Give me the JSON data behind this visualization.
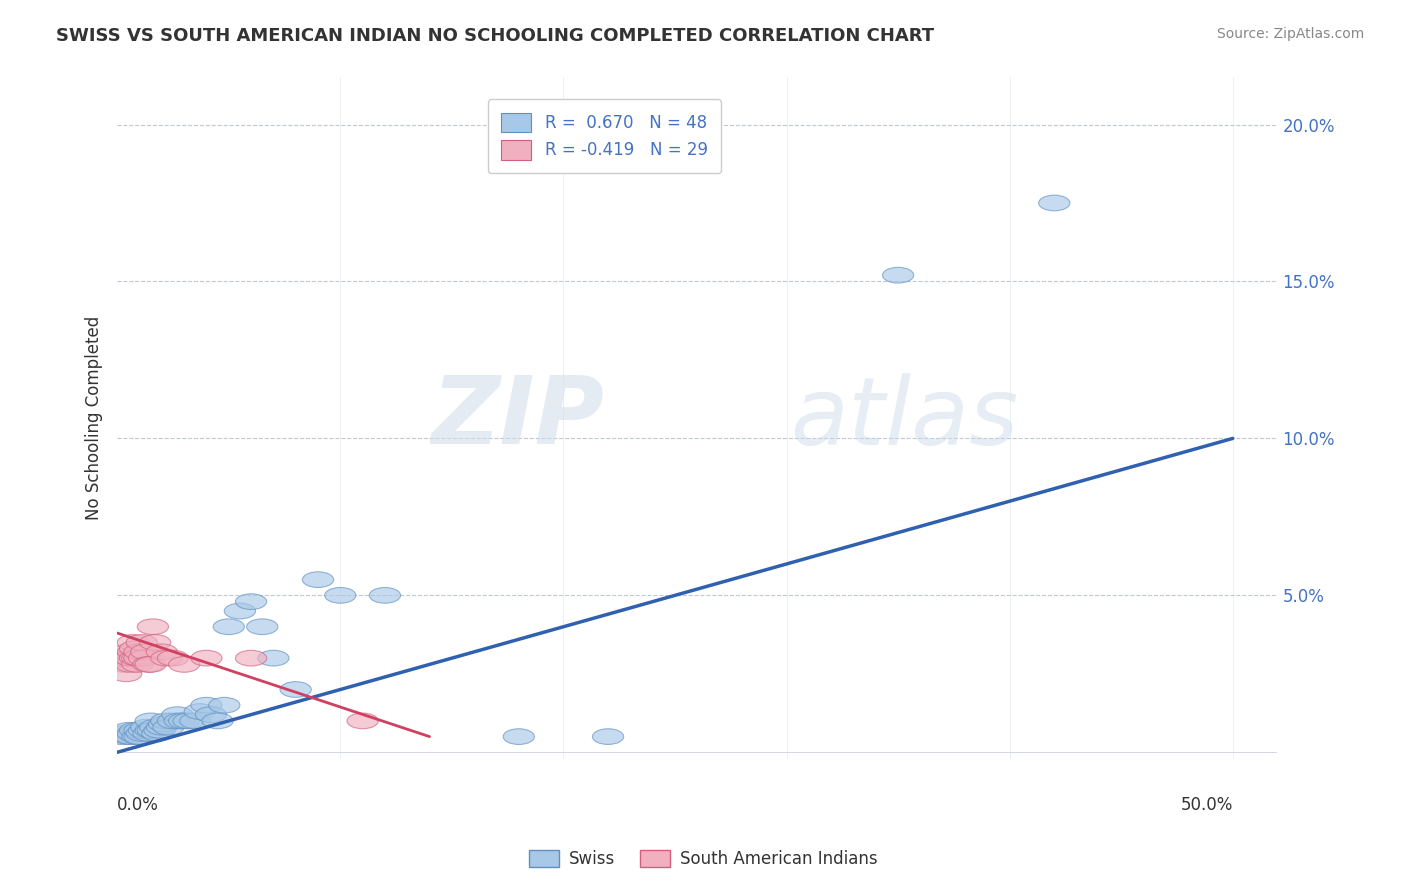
{
  "title": "SWISS VS SOUTH AMERICAN INDIAN NO SCHOOLING COMPLETED CORRELATION CHART",
  "source": "Source: ZipAtlas.com",
  "ylabel": "No Schooling Completed",
  "r_swiss": 0.67,
  "n_swiss": 48,
  "r_sam": -0.419,
  "n_sam": 29,
  "xlim": [
    0.0,
    0.52
  ],
  "ylim": [
    -0.002,
    0.215
  ],
  "yticks": [
    0.05,
    0.1,
    0.15,
    0.2
  ],
  "ytick_labels": [
    "5.0%",
    "10.0%",
    "15.0%",
    "20.0%"
  ],
  "xtick_left_label": "0.0%",
  "xtick_right_label": "50.0%",
  "color_swiss": "#a8c8e8",
  "color_swiss_edge": "#6090c0",
  "color_swiss_line": "#3060b0",
  "color_sam": "#f0b0c0",
  "color_sam_edge": "#d06080",
  "color_sam_line": "#d04060",
  "watermark_zip": "ZIP",
  "watermark_atlas": "atlas",
  "background_color": "#ffffff",
  "swiss_x": [
    0.002,
    0.003,
    0.005,
    0.005,
    0.006,
    0.007,
    0.008,
    0.009,
    0.01,
    0.01,
    0.011,
    0.012,
    0.013,
    0.014,
    0.015,
    0.015,
    0.016,
    0.017,
    0.018,
    0.019,
    0.02,
    0.021,
    0.022,
    0.023,
    0.025,
    0.027,
    0.028,
    0.03,
    0.032,
    0.035,
    0.037,
    0.04,
    0.042,
    0.045,
    0.048,
    0.05,
    0.055,
    0.06,
    0.065,
    0.07,
    0.08,
    0.09,
    0.1,
    0.12,
    0.18,
    0.22,
    0.35,
    0.42
  ],
  "swiss_y": [
    0.005,
    0.006,
    0.005,
    0.007,
    0.005,
    0.006,
    0.007,
    0.005,
    0.005,
    0.007,
    0.006,
    0.007,
    0.008,
    0.006,
    0.007,
    0.01,
    0.007,
    0.008,
    0.006,
    0.007,
    0.008,
    0.009,
    0.01,
    0.008,
    0.01,
    0.012,
    0.01,
    0.01,
    0.01,
    0.01,
    0.013,
    0.015,
    0.012,
    0.01,
    0.015,
    0.04,
    0.045,
    0.048,
    0.04,
    0.03,
    0.02,
    0.055,
    0.05,
    0.05,
    0.005,
    0.005,
    0.152,
    0.175
  ],
  "sam_x": [
    0.002,
    0.003,
    0.004,
    0.005,
    0.005,
    0.006,
    0.006,
    0.007,
    0.007,
    0.008,
    0.008,
    0.009,
    0.009,
    0.01,
    0.01,
    0.011,
    0.012,
    0.013,
    0.014,
    0.015,
    0.016,
    0.017,
    0.02,
    0.022,
    0.025,
    0.03,
    0.04,
    0.06,
    0.11
  ],
  "sam_y": [
    0.03,
    0.028,
    0.025,
    0.03,
    0.032,
    0.028,
    0.03,
    0.032,
    0.035,
    0.03,
    0.033,
    0.028,
    0.03,
    0.03,
    0.032,
    0.035,
    0.03,
    0.032,
    0.028,
    0.028,
    0.04,
    0.035,
    0.032,
    0.03,
    0.03,
    0.028,
    0.03,
    0.03,
    0.01
  ],
  "swiss_line_x": [
    0.0,
    0.5
  ],
  "swiss_line_y": [
    0.0,
    0.1
  ],
  "sam_line_x": [
    0.0,
    0.14
  ],
  "sam_line_y": [
    0.038,
    0.005
  ]
}
